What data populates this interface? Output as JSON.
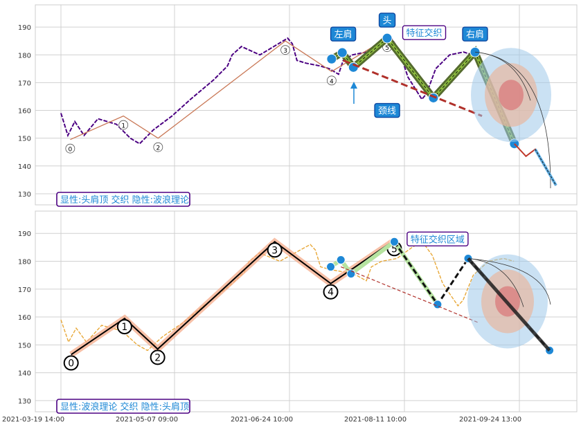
{
  "chart_data": [
    {
      "type": "line",
      "panel": "top",
      "ylim": [
        126,
        198
      ],
      "yticks": [
        130,
        140,
        150,
        160,
        170,
        180,
        190
      ],
      "grid": true,
      "price_color": "#4b0082",
      "price": [
        [
          0,
          159
        ],
        [
          1.5,
          151
        ],
        [
          3,
          156
        ],
        [
          5,
          151
        ],
        [
          8,
          157
        ],
        [
          12,
          155
        ],
        [
          15,
          150
        ],
        [
          17,
          148
        ],
        [
          20,
          153
        ],
        [
          24,
          158
        ],
        [
          28,
          164
        ],
        [
          33,
          171
        ],
        [
          36,
          176
        ],
        [
          37,
          180
        ],
        [
          39,
          183
        ],
        [
          43,
          180
        ],
        [
          46,
          183
        ],
        [
          49,
          186
        ],
        [
          50,
          184
        ],
        [
          51,
          178
        ],
        [
          53,
          177
        ],
        [
          56,
          176
        ],
        [
          58,
          175
        ],
        [
          60,
          173
        ],
        [
          61,
          178
        ],
        [
          63,
          180
        ],
        [
          66,
          181
        ],
        [
          69,
          185
        ],
        [
          71,
          187
        ],
        [
          73,
          182
        ],
        [
          75,
          172
        ],
        [
          78,
          164
        ],
        [
          79,
          166
        ],
        [
          81,
          175
        ],
        [
          84,
          180
        ],
        [
          87,
          181
        ],
        [
          89,
          180
        ]
      ],
      "wave_points": [
        {
          "label": "0",
          "x": 2,
          "y": 149.5
        },
        {
          "label": "1",
          "x": 13.5,
          "y": 158
        },
        {
          "label": "2",
          "x": 21,
          "y": 150
        },
        {
          "label": "3",
          "x": 48.5,
          "y": 185
        },
        {
          "label": "4",
          "x": 58.5,
          "y": 174
        },
        {
          "label": "5",
          "x": 70.5,
          "y": 186
        }
      ],
      "hs_points": [
        [
          58.5,
          178.5
        ],
        [
          60.8,
          180.8
        ],
        [
          63.2,
          175.5
        ],
        [
          70.5,
          186
        ],
        [
          80.5,
          164.5
        ],
        [
          89.5,
          181
        ],
        [
          98,
          148
        ]
      ],
      "neckline": [
        [
          61,
          178
        ],
        [
          91,
          158
        ]
      ],
      "projection": [
        [
          89.5,
          181
        ],
        [
          98,
          148
        ],
        [
          100.5,
          143.5
        ],
        [
          102.5,
          146
        ],
        [
          107,
          133
        ]
      ],
      "tags": [
        {
          "text": "左肩",
          "x": 61,
          "y": 187.5
        },
        {
          "text": "头",
          "x": 70.5,
          "y": 192.5
        },
        {
          "text": "特征交织",
          "x": 78.5,
          "y": 188
        },
        {
          "text": "右肩",
          "x": 89.5,
          "y": 187.5
        },
        {
          "text": "颈线",
          "x": 70.5,
          "y": 160
        }
      ],
      "legend": "显性:头肩顶 交织 隐性:波浪理论"
    },
    {
      "type": "line",
      "panel": "bottom",
      "ylim": [
        126,
        198
      ],
      "yticks": [
        130,
        140,
        150,
        160,
        170,
        180,
        190
      ],
      "grid": true,
      "price_color": "#e8a838",
      "price": [
        [
          0,
          159
        ],
        [
          1.5,
          151
        ],
        [
          3,
          156
        ],
        [
          5,
          151
        ],
        [
          8,
          157
        ],
        [
          12,
          155
        ],
        [
          15,
          150
        ],
        [
          17,
          148
        ],
        [
          20,
          153
        ],
        [
          24,
          158
        ],
        [
          28,
          164
        ],
        [
          33,
          171
        ],
        [
          36,
          176
        ],
        [
          37,
          180
        ],
        [
          39,
          183
        ],
        [
          43,
          180
        ],
        [
          46,
          183
        ],
        [
          49,
          186
        ],
        [
          50,
          184
        ],
        [
          51,
          178
        ],
        [
          53,
          177
        ],
        [
          56,
          176
        ],
        [
          58,
          175
        ],
        [
          60,
          173
        ],
        [
          61,
          178
        ],
        [
          63,
          180
        ],
        [
          66,
          181
        ],
        [
          69,
          185
        ],
        [
          71,
          187
        ],
        [
          73,
          182
        ],
        [
          75,
          172
        ],
        [
          78,
          164
        ],
        [
          79,
          166
        ],
        [
          81,
          175
        ],
        [
          84,
          180
        ],
        [
          87,
          181
        ],
        [
          89,
          180
        ]
      ],
      "wave_points": [
        {
          "label": "0",
          "x": 2,
          "y": 146.5
        },
        {
          "label": "1",
          "x": 12.5,
          "y": 159.5
        },
        {
          "label": "2",
          "x": 19,
          "y": 148.5
        },
        {
          "label": "3",
          "x": 42,
          "y": 187
        },
        {
          "label": "4",
          "x": 53,
          "y": 172
        },
        {
          "label": "5",
          "x": 65.5,
          "y": 187.5
        }
      ],
      "hs_points": [
        [
          53,
          178
        ],
        [
          55,
          180.5
        ],
        [
          57,
          175.5
        ],
        [
          65.5,
          187
        ],
        [
          74,
          164.5
        ],
        [
          80,
          181
        ],
        [
          96,
          148
        ]
      ],
      "neckline": [
        [
          55,
          178
        ],
        [
          82,
          158
        ]
      ],
      "tags": [
        {
          "text": "特征交织区域",
          "x": 74,
          "y": 188
        }
      ],
      "legend": "显性:波浪理论 交织 隐性:头肩顶"
    }
  ],
  "x_axis": {
    "tick_labels": [
      "2021-03-19 14:00",
      "2021-05-07 09:00",
      "2021-06-24 10:00",
      "2021-08-11 10:00",
      "2021-09-24 13:00"
    ]
  }
}
